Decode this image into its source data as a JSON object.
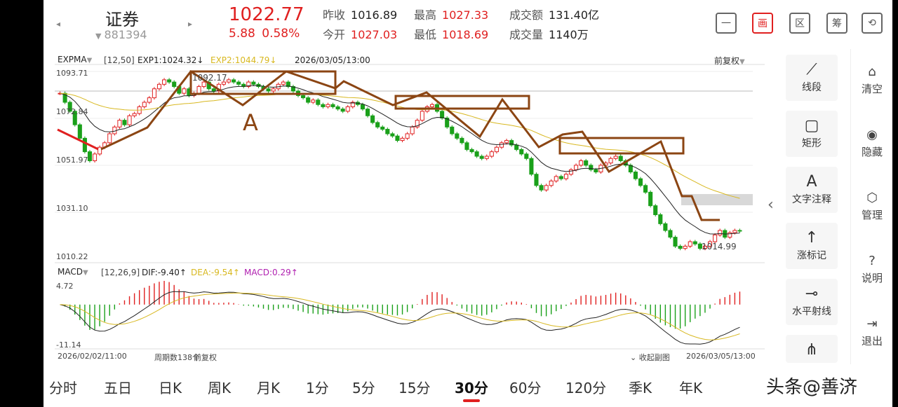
{
  "header": {
    "name": "证券",
    "code": "881394",
    "price": "1022.77",
    "change": "5.88",
    "change_pct": "0.58%",
    "quotes": [
      {
        "label": "昨收",
        "value": "1016.89",
        "color": "black"
      },
      {
        "label": "最高",
        "value": "1027.33",
        "color": "red"
      },
      {
        "label": "成交额",
        "value": "131.40亿",
        "color": "black"
      },
      {
        "label": "今开",
        "value": "1027.03",
        "color": "red"
      },
      {
        "label": "最低",
        "value": "1018.69",
        "color": "red"
      },
      {
        "label": "成交量",
        "value": "1140万",
        "color": "black"
      }
    ],
    "icons": [
      "minus-icon",
      "draw-icon",
      "region-icon",
      "chips-icon",
      "rotate-icon"
    ],
    "icon_glyphs": [
      "一",
      "画",
      "区",
      "筹",
      "⟲"
    ]
  },
  "chart": {
    "main_indicator": "EXPMA",
    "main_params": "[12,50]",
    "exp1": "EXP1:1024.32↓",
    "exp2": "EXP2:1044.79↓",
    "cursor_time": "2026/03/05/13:00",
    "adjust": "前复权",
    "price_ticks": [
      "1093.71",
      "1072.84",
      "1051.97",
      "1031.10",
      "1010.22"
    ],
    "max_label": "1092.17",
    "min_label": "1014.99",
    "annotation": "A",
    "macd_indicator": "MACD",
    "macd_params": "[12,26,9]",
    "dif": "DIF:-9.40↑",
    "dea": "DEA:-9.54↑",
    "macd": "MACD:0.29↑",
    "macd_top": "4.72",
    "macd_bottom": "-11.14",
    "start_time": "2026/02/02/11:00",
    "period_count": "周期数138个",
    "adjust_bottom": "前复权",
    "collapse_sub": "收起副图",
    "end_time": "2026/03/05/13:00",
    "colors": {
      "up": "#e02020",
      "down": "#1aa01a",
      "exp1": "#222222",
      "exp2": "#d8b820",
      "annot": "#8b4513",
      "macd": "#b020b0"
    }
  },
  "chart_data": {
    "type": "candlestick",
    "title": "证券 881394 30分",
    "y_range": [
      1010.22,
      1093.71
    ],
    "x_range": [
      "2026/02/02/11:00",
      "2026/03/05/13:00"
    ],
    "period_count": 138,
    "close": [
      1084,
      1080,
      1076,
      1070,
      1064,
      1058,
      1054,
      1057,
      1060,
      1062,
      1066,
      1069,
      1072,
      1070,
      1074,
      1075,
      1078,
      1080,
      1082,
      1086,
      1088,
      1090,
      1089,
      1087,
      1084,
      1086,
      1083,
      1084,
      1087,
      1089,
      1086,
      1085,
      1088,
      1089,
      1090,
      1089,
      1088,
      1087,
      1089,
      1088,
      1087,
      1086,
      1085,
      1086,
      1088,
      1089,
      1087,
      1085,
      1083,
      1082,
      1080,
      1081,
      1079,
      1078,
      1079,
      1078,
      1077,
      1076,
      1078,
      1080,
      1079,
      1077,
      1074,
      1071,
      1069,
      1068,
      1066,
      1065,
      1063,
      1064,
      1066,
      1069,
      1072,
      1076,
      1078,
      1079,
      1076,
      1073,
      1069,
      1066,
      1064,
      1062,
      1059,
      1058,
      1056,
      1055,
      1056,
      1058,
      1060,
      1062,
      1063,
      1061,
      1059,
      1057,
      1055,
      1048,
      1043,
      1041,
      1043,
      1045,
      1047,
      1046,
      1048,
      1050,
      1052,
      1054,
      1052,
      1050,
      1049,
      1052,
      1053,
      1055,
      1056,
      1054,
      1052,
      1049,
      1046,
      1043,
      1040,
      1034,
      1030,
      1026,
      1023,
      1020,
      1016,
      1015,
      1016,
      1018,
      1017,
      1015,
      1016,
      1018,
      1021,
      1023,
      1020,
      1022,
      1023,
      1022.77
    ],
    "ema12_end": 1024.32,
    "ema50_end": 1044.79,
    "macd_dif_end": -9.4,
    "macd_dea_end": -9.54,
    "macd_hist_end": 0.29,
    "macd_range": [
      -11.14,
      4.72
    ]
  },
  "tools": [
    {
      "label": "线段",
      "icon": "segment-icon",
      "glyph": "⟋"
    },
    {
      "label": "矩形",
      "icon": "rectangle-icon",
      "glyph": "▢"
    },
    {
      "label": "文字注释",
      "icon": "text-annotation-icon",
      "glyph": "A"
    },
    {
      "label": "涨标记",
      "icon": "up-mark-icon",
      "glyph": "↑"
    },
    {
      "label": "水平射线",
      "icon": "horizontal-ray-icon",
      "glyph": "⊸"
    },
    {
      "label": "",
      "icon": "more-tool-icon",
      "glyph": "⋔"
    }
  ],
  "side": [
    {
      "label": "清空",
      "icon": "clear-icon",
      "glyph": "⌂"
    },
    {
      "label": "隐藏",
      "icon": "eye-icon",
      "glyph": "◉"
    },
    {
      "label": "管理",
      "icon": "manage-icon",
      "glyph": "⬡"
    },
    {
      "label": "说明",
      "icon": "help-icon",
      "glyph": "?"
    },
    {
      "label": "退出",
      "icon": "exit-icon",
      "glyph": "⇥"
    }
  ],
  "tabs": [
    "分时",
    "五日",
    "日K",
    "周K",
    "月K",
    "1分",
    "5分",
    "15分",
    "30分",
    "60分",
    "120分",
    "季K",
    "年K"
  ],
  "active_tab": "30分",
  "watermark": "头条@善济"
}
